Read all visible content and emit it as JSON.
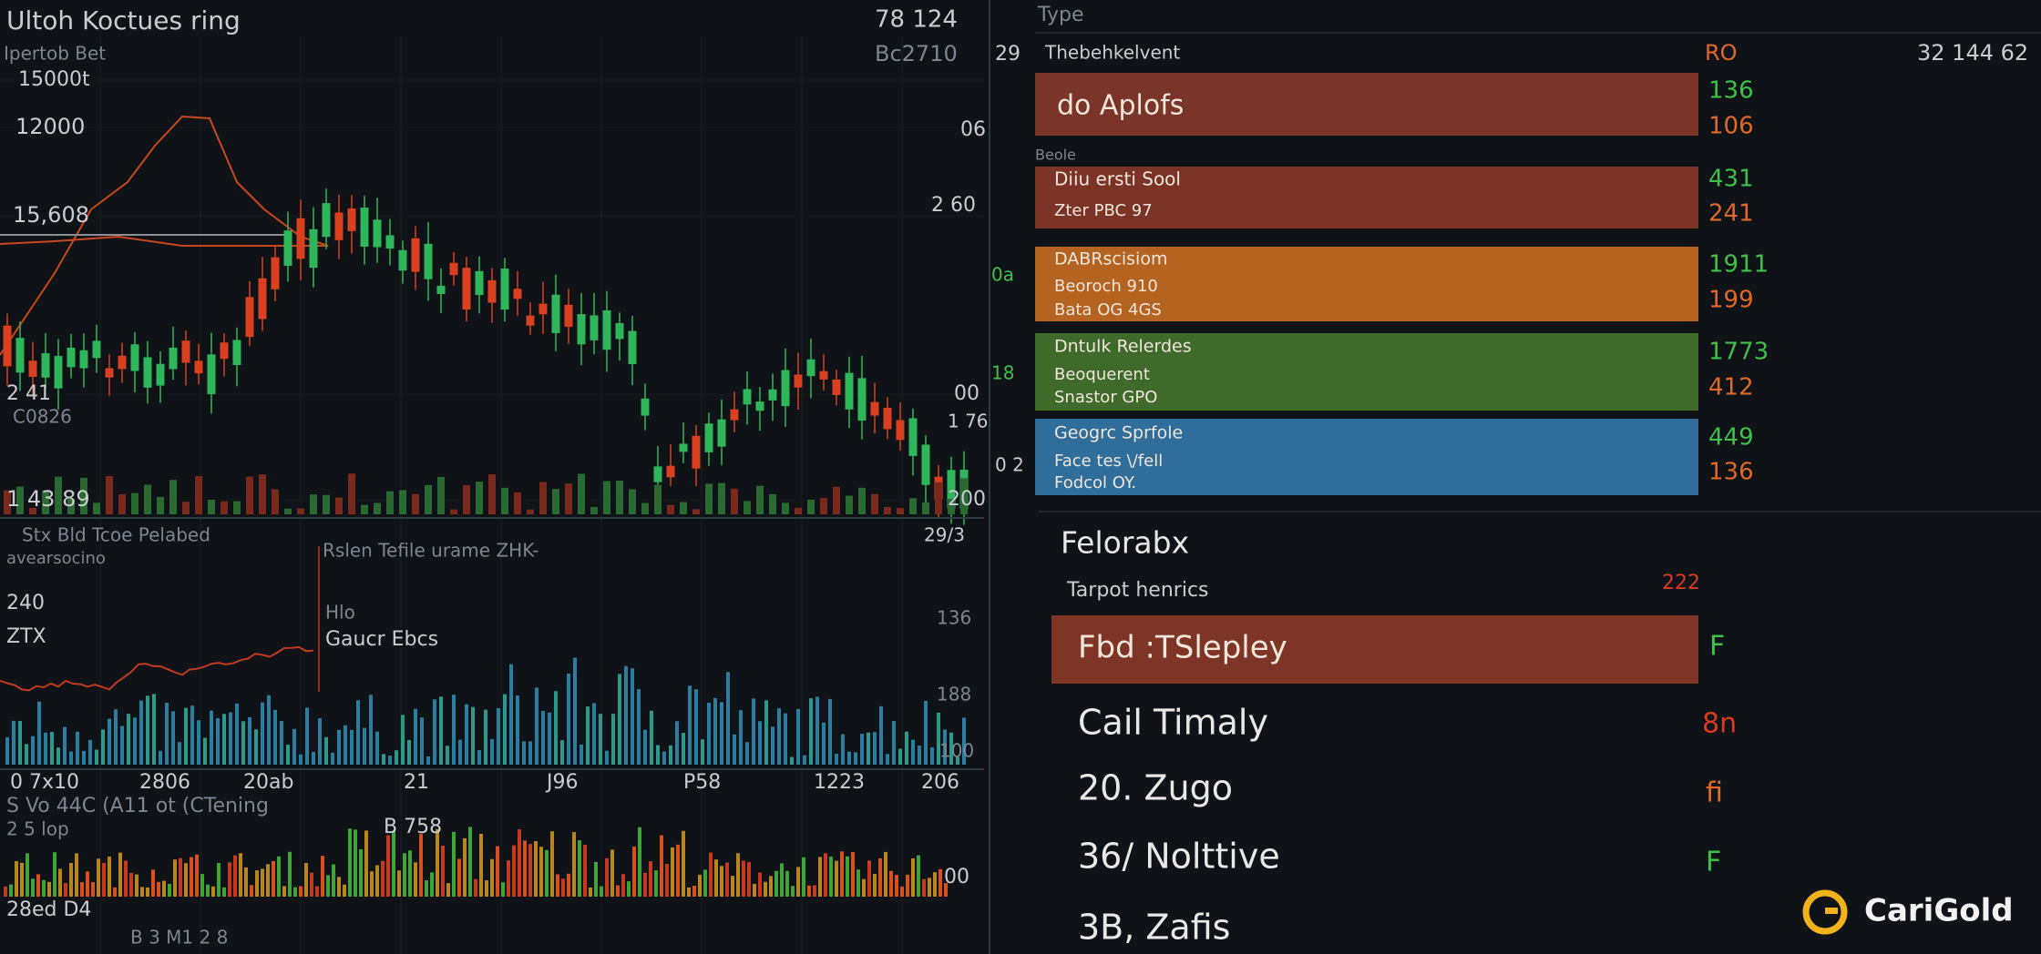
{
  "left_panel": {
    "title": "Ultoh Koctues ring",
    "ticker_value": "78 124",
    "subtitle": "Ipertob Bet",
    "ticker_code": "Bc2710",
    "price_labels": [
      "15000t",
      "12000",
      "15,608",
      "2 41",
      "C0826",
      "1 43 89"
    ],
    "right_labels": [
      "06",
      "2 60",
      "00",
      "1 76",
      "200"
    ],
    "lower_title": "Stx Bld Tcoe Pelabed",
    "lower_subtitle": "avearsocino",
    "lower_note": "Rslen Tefile urame ZHK-",
    "lower_marker": "29/3",
    "lower_left": [
      "240",
      "ZTX"
    ],
    "lower_tags": [
      "Hlo",
      "Gaucr Ebcs"
    ],
    "lower_right": [
      "136",
      "188",
      "100"
    ],
    "time_axis": [
      "0 7x10",
      "2806",
      "20ab",
      "21",
      "J96",
      "P58",
      "1223",
      "206"
    ],
    "volume_title": "S Vo 44C (A11 ot (CTening",
    "volume_sub": "2 5 lop",
    "volume_note": "B 758",
    "volume_right": "00",
    "volume_footer": [
      "28ed D4",
      "B 3 M1 2 8"
    ]
  },
  "divider_labels": [
    "29",
    "0a",
    "18",
    "0 2"
  ],
  "right_panel": {
    "type_label": "Type",
    "header": {
      "name": "Thebehkelvent",
      "column": "RO",
      "total": "32 144 62"
    },
    "group_label": "Beole",
    "rows": [
      {
        "lines": [
          "do Aplofs"
        ],
        "values": [
          "136",
          "106"
        ]
      },
      {
        "lines": [
          "Diiu ersti Sool",
          "Zter PBC 97"
        ],
        "values": [
          "431",
          "241"
        ]
      },
      {
        "lines": [
          "DABRscisiom",
          "Beoroch 910",
          "Bata OG 4GS"
        ],
        "values": [
          "1911",
          "199"
        ]
      },
      {
        "lines": [
          "Dntulk Relerdes",
          "Beoquerent",
          "Snastor GPO"
        ],
        "values": [
          "1773",
          "412"
        ]
      },
      {
        "lines": [
          "Geogrc Sprfole",
          "Face tes \\/fell",
          "Fodcol OY."
        ],
        "values": [
          "449",
          "136"
        ]
      }
    ],
    "section_title": "Felorabx",
    "section_subtitle": "Tarpot henrics",
    "section_value": "222",
    "list": [
      {
        "name": "Fbd :TSlepley",
        "flag": "F"
      },
      {
        "name": "Cail Timaly",
        "flag": "8n"
      },
      {
        "name": "20. Zugo",
        "flag": "fi"
      },
      {
        "name": "36/ Nolttive",
        "flag": "F"
      },
      {
        "name": "3B, Zafis",
        "flag": ""
      }
    ]
  },
  "logo": "CariGold"
}
